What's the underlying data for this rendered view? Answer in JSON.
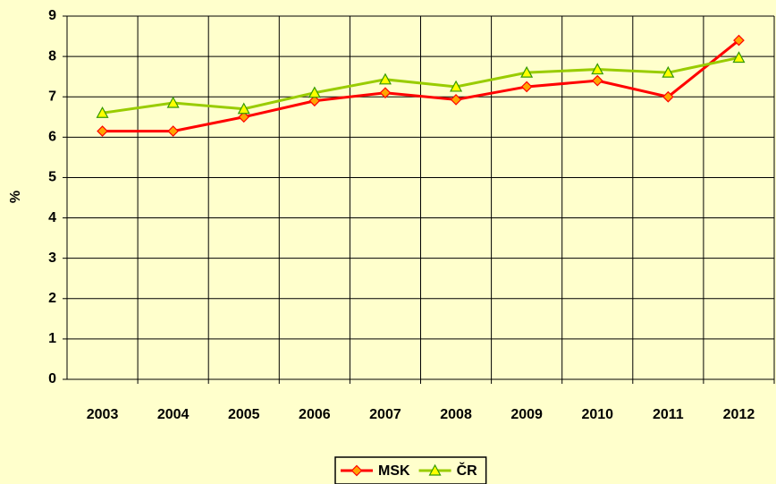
{
  "chart_data": {
    "type": "line",
    "y_label": "%",
    "categories": [
      "2003",
      "2004",
      "2005",
      "2006",
      "2007",
      "2008",
      "2009",
      "2010",
      "2011",
      "2012"
    ],
    "series": [
      {
        "name": "MSK",
        "color": "#FF0000",
        "marker": "diamond",
        "marker_fill": "#FFA500",
        "values": [
          6.15,
          6.15,
          6.5,
          6.9,
          7.1,
          6.93,
          7.25,
          7.4,
          7.0,
          8.4
        ]
      },
      {
        "name": "ČR",
        "color": "#99CC00",
        "marker": "triangle",
        "marker_fill": "#FFFF00",
        "values": [
          6.6,
          6.85,
          6.7,
          7.1,
          7.43,
          7.25,
          7.6,
          7.68,
          7.6,
          7.97
        ]
      }
    ],
    "ylim": [
      0,
      9
    ],
    "yticks": [
      0,
      1,
      2,
      3,
      4,
      5,
      6,
      7,
      8,
      9
    ],
    "grid": true,
    "legend": "bottom"
  }
}
